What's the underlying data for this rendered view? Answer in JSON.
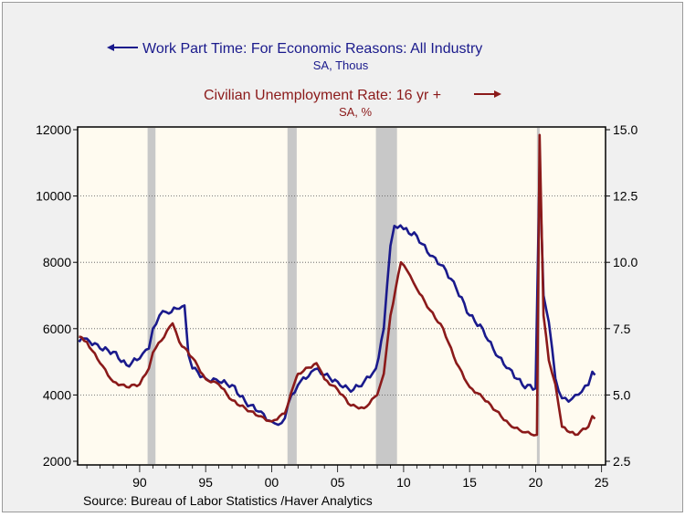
{
  "chart_data": {
    "type": "line",
    "legend": [
      {
        "name": "Work Part Time: For Economic Reasons: All Industry",
        "units": "SA, Thous",
        "axis": "left",
        "color": "#1a1a8c"
      },
      {
        "name": "Civilian Unemployment Rate: 16 yr +",
        "units": "SA, %",
        "axis": "right",
        "color": "#8b1a1a"
      }
    ],
    "source": "Source:  Bureau of Labor Statistics /Haver Analytics",
    "xlim": [
      1985.3,
      2025.3
    ],
    "x_ticks": [
      {
        "v": 1990,
        "label": "90"
      },
      {
        "v": 1995,
        "label": "95"
      },
      {
        "v": 2000,
        "label": "00"
      },
      {
        "v": 2005,
        "label": "05"
      },
      {
        "v": 2010,
        "label": "10"
      },
      {
        "v": 2015,
        "label": "15"
      },
      {
        "v": 2020,
        "label": "20"
      },
      {
        "v": 2025,
        "label": "25"
      }
    ],
    "y_left": {
      "lim": [
        2000,
        12000
      ],
      "ticks": [
        "2000",
        "4000",
        "6000",
        "8000",
        "10000",
        "12000"
      ]
    },
    "y_right": {
      "lim": [
        2.5,
        15.0
      ],
      "ticks": [
        "2.5",
        "5.0",
        "7.5",
        "10.0",
        "12.5",
        "15.0"
      ]
    },
    "grid": "horizontal dotted",
    "recessions": [
      [
        1990.6,
        1991.2
      ],
      [
        2001.2,
        2001.9
      ],
      [
        2007.9,
        2009.5
      ],
      [
        2020.1,
        2020.3
      ]
    ],
    "series": [
      {
        "name": "Work Part Time: For Economic Reasons: All Industry",
        "axis": "left",
        "color": "#1a1a8c",
        "x": [
          1985.4,
          1986,
          1987,
          1988,
          1989,
          1990,
          1990.7,
          1991,
          1991.5,
          1992,
          1993,
          1993.4,
          1993.7,
          1994,
          1995,
          1996,
          1997,
          1998,
          1999,
          2000,
          2000.5,
          2001,
          2001.5,
          2002,
          2003,
          2003.5,
          2004,
          2005,
          2006,
          2007,
          2007.9,
          2008.5,
          2009,
          2009.3,
          2010,
          2011,
          2012,
          2013,
          2014,
          2015,
          2016,
          2017,
          2018,
          2019,
          2020.0,
          2020.3,
          2020.6,
          2021,
          2021.5,
          2022,
          2022.5,
          2023,
          2023.5,
          2024,
          2024.3,
          2024.5
        ],
        "values": [
          5600,
          5700,
          5400,
          5300,
          4900,
          5100,
          5400,
          6000,
          6400,
          6500,
          6600,
          6700,
          5200,
          4800,
          4500,
          4400,
          4300,
          3800,
          3500,
          3200,
          3100,
          3300,
          4000,
          4300,
          4700,
          4800,
          4600,
          4400,
          4100,
          4400,
          4800,
          6000,
          8500,
          9100,
          9000,
          8800,
          8200,
          7900,
          7200,
          6400,
          6000,
          5200,
          4800,
          4300,
          4200,
          10900,
          7000,
          6200,
          4500,
          3900,
          3800,
          4000,
          4100,
          4300,
          4700,
          4600
        ]
      },
      {
        "name": "Civilian Unemployment Rate: 16 yr +",
        "axis": "right",
        "color": "#8b1a1a",
        "x": [
          1985.4,
          1986,
          1987,
          1988,
          1989,
          1990,
          1990.7,
          1991,
          1992.5,
          1993,
          1994,
          1995,
          1996,
          1997,
          1998,
          1999,
          2000,
          2001,
          2001.9,
          2002,
          2003.4,
          2004,
          2005,
          2006,
          2007,
          2008,
          2008.5,
          2009,
          2009.8,
          2010.5,
          2011,
          2012,
          2013,
          2014,
          2015,
          2016,
          2017,
          2018,
          2019,
          2020.1,
          2020.3,
          2020.6,
          2021,
          2021.5,
          2022,
          2023,
          2024,
          2024.3,
          2024.5
        ],
        "values": [
          7.2,
          7.0,
          6.2,
          5.5,
          5.3,
          5.4,
          6.0,
          6.6,
          7.7,
          7.0,
          6.4,
          5.6,
          5.4,
          4.8,
          4.5,
          4.2,
          4.0,
          4.3,
          5.7,
          5.8,
          6.2,
          5.6,
          5.2,
          4.6,
          4.5,
          5.0,
          5.8,
          8.0,
          10.0,
          9.5,
          9.0,
          8.2,
          7.5,
          6.2,
          5.3,
          4.9,
          4.4,
          3.9,
          3.6,
          3.5,
          14.8,
          8.0,
          6.3,
          5.4,
          3.8,
          3.5,
          3.8,
          4.2,
          4.1
        ]
      }
    ]
  }
}
